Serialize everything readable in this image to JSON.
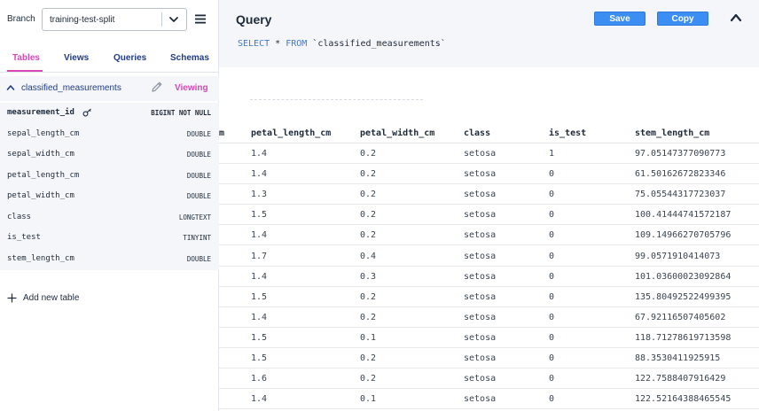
{
  "sidebar": {
    "branch_label": "Branch",
    "branch_value": "training-test-split",
    "tabs": [
      {
        "label": "Tables",
        "active": true
      },
      {
        "label": "Views",
        "active": false
      },
      {
        "label": "Queries",
        "active": false
      },
      {
        "label": "Schemas",
        "active": false
      }
    ],
    "table": {
      "name": "classified_measurements",
      "status": "Viewing",
      "columns": [
        {
          "name": "measurement_id",
          "type": "BIGINT NOT NULL",
          "primary_key": true
        },
        {
          "name": "sepal_length_cm",
          "type": "DOUBLE"
        },
        {
          "name": "sepal_width_cm",
          "type": "DOUBLE"
        },
        {
          "name": "petal_length_cm",
          "type": "DOUBLE"
        },
        {
          "name": "petal_width_cm",
          "type": "DOUBLE"
        },
        {
          "name": "class",
          "type": "LONGTEXT"
        },
        {
          "name": "is_test",
          "type": "TINYINT"
        },
        {
          "name": "stem_length_cm",
          "type": "DOUBLE"
        }
      ]
    },
    "add_table_label": "Add new table"
  },
  "query": {
    "title": "Query",
    "save_label": "Save",
    "copy_label": "Copy",
    "sql_keyword1": "SELECT",
    "sql_star": " * ",
    "sql_keyword2": "FROM",
    "sql_table": " `classified_measurements`"
  },
  "results": {
    "headers": [
      "m",
      "petal_length_cm",
      "petal_width_cm",
      "class",
      "is_test",
      "stem_length_cm"
    ],
    "rows": [
      [
        "1.4",
        "0.2",
        "setosa",
        "1",
        "97.05147377090773"
      ],
      [
        "1.4",
        "0.2",
        "setosa",
        "0",
        "61.50162672823346"
      ],
      [
        "1.3",
        "0.2",
        "setosa",
        "0",
        "75.05544317723037"
      ],
      [
        "1.5",
        "0.2",
        "setosa",
        "0",
        "100.41444741572187"
      ],
      [
        "1.4",
        "0.2",
        "setosa",
        "0",
        "109.14966270705796"
      ],
      [
        "1.7",
        "0.4",
        "setosa",
        "0",
        "99.0571910414073"
      ],
      [
        "1.4",
        "0.3",
        "setosa",
        "0",
        "101.03600023092864"
      ],
      [
        "1.5",
        "0.2",
        "setosa",
        "0",
        "135.80492522499395"
      ],
      [
        "1.4",
        "0.2",
        "setosa",
        "0",
        "67.92116507405602"
      ],
      [
        "1.5",
        "0.1",
        "setosa",
        "0",
        "118.71278619713598"
      ],
      [
        "1.5",
        "0.2",
        "setosa",
        "0",
        "88.3530411925915"
      ],
      [
        "1.6",
        "0.2",
        "setosa",
        "0",
        "122.7588407916429"
      ],
      [
        "1.4",
        "0.1",
        "setosa",
        "0",
        "122.52164388465545"
      ]
    ]
  },
  "colors": {
    "accent_pink": "#d946b8",
    "button_blue": "#3c8ef2",
    "link_navy": "#1f3b8a",
    "panel_gray": "#f5f6f9"
  },
  "icons": [
    "chevron-down-icon",
    "menu-icon",
    "chevron-up-icon",
    "pencil-icon",
    "key-icon",
    "plus-icon",
    "collapse-icon"
  ]
}
